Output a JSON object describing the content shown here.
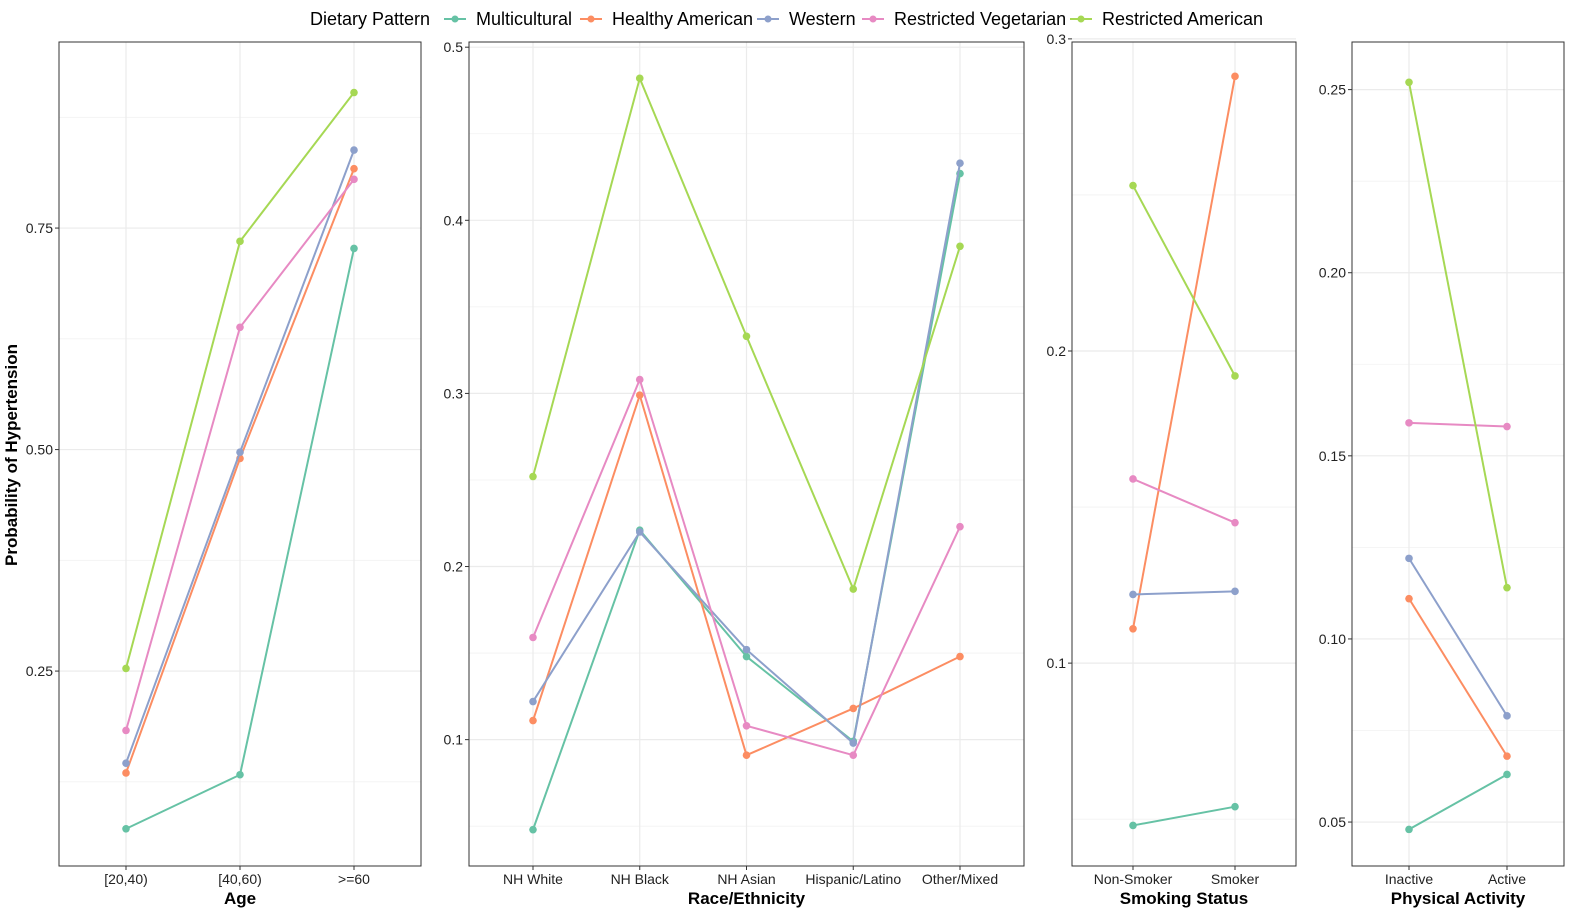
{
  "legend": {
    "title": "Dietary Pattern",
    "entries": [
      {
        "name": "Multicultural",
        "color": "#66C2A5"
      },
      {
        "name": "Healthy American",
        "color": "#FC8D62"
      },
      {
        "name": "Western",
        "color": "#8DA0CB"
      },
      {
        "name": "Restricted Vegetarian",
        "color": "#E78AC3"
      },
      {
        "name": "Restricted American",
        "color": "#A6D854"
      }
    ]
  },
  "ylabel": "Probability of Hypertension",
  "chart_data": [
    {
      "type": "line",
      "xlabel": "Age",
      "categories": [
        "[20,40)",
        "[40,60)",
        ">=60"
      ],
      "yticks": [
        0.25,
        0.5,
        0.75
      ],
      "ytick_labels": [
        "0.25",
        "0.50",
        "0.75"
      ],
      "ylim": [
        0.03,
        0.96
      ],
      "series": [
        {
          "name": "Multicultural",
          "values": [
            0.072,
            0.133,
            0.727
          ]
        },
        {
          "name": "Healthy American",
          "values": [
            0.135,
            0.49,
            0.817
          ]
        },
        {
          "name": "Western",
          "values": [
            0.146,
            0.497,
            0.838
          ]
        },
        {
          "name": "Restricted Vegetarian",
          "values": [
            0.183,
            0.638,
            0.805
          ]
        },
        {
          "name": "Restricted American",
          "values": [
            0.253,
            0.735,
            0.903
          ]
        }
      ]
    },
    {
      "type": "line",
      "xlabel": "Race/Ethnicity",
      "categories": [
        "NH White",
        "NH Black",
        "NH Asian",
        "Hispanic/Latino",
        "Other/Mixed"
      ],
      "yticks": [
        0.1,
        0.2,
        0.3,
        0.4,
        0.5
      ],
      "ytick_labels": [
        "0.1",
        "0.2",
        "0.3",
        "0.4",
        "0.5"
      ],
      "ylim": [
        0.027,
        0.503
      ],
      "series": [
        {
          "name": "Multicultural",
          "values": [
            0.048,
            0.221,
            0.148,
            0.099,
            0.427
          ]
        },
        {
          "name": "Healthy American",
          "values": [
            0.111,
            0.299,
            0.091,
            0.118,
            0.148
          ]
        },
        {
          "name": "Western",
          "values": [
            0.122,
            0.22,
            0.152,
            0.098,
            0.433
          ]
        },
        {
          "name": "Restricted Vegetarian",
          "values": [
            0.159,
            0.308,
            0.108,
            0.091,
            0.223
          ]
        },
        {
          "name": "Restricted American",
          "values": [
            0.252,
            0.482,
            0.333,
            0.187,
            0.385
          ]
        }
      ]
    },
    {
      "type": "line",
      "xlabel": "Smoking Status",
      "categories": [
        "Non-Smoker",
        "Smoker"
      ],
      "yticks": [
        0.1,
        0.2,
        0.3
      ],
      "ytick_labels": [
        "0.1",
        "0.2",
        "0.3"
      ],
      "ylim": [
        0.035,
        0.299
      ],
      "series": [
        {
          "name": "Multicultural",
          "values": [
            0.048,
            0.054
          ]
        },
        {
          "name": "Healthy American",
          "values": [
            0.111,
            0.288
          ]
        },
        {
          "name": "Western",
          "values": [
            0.122,
            0.123
          ]
        },
        {
          "name": "Restricted Vegetarian",
          "values": [
            0.159,
            0.145
          ]
        },
        {
          "name": "Restricted American",
          "values": [
            0.253,
            0.192
          ]
        }
      ]
    },
    {
      "type": "line",
      "xlabel": "Physical Activity",
      "categories": [
        "Inactive",
        "Active"
      ],
      "yticks": [
        0.05,
        0.1,
        0.15,
        0.2,
        0.25
      ],
      "ytick_labels": [
        "0.05",
        "0.10",
        "0.15",
        "0.20",
        "0.25"
      ],
      "ylim": [
        0.038,
        0.263
      ],
      "series": [
        {
          "name": "Multicultural",
          "values": [
            0.048,
            0.063
          ]
        },
        {
          "name": "Healthy American",
          "values": [
            0.111,
            0.068
          ]
        },
        {
          "name": "Western",
          "values": [
            0.122,
            0.079
          ]
        },
        {
          "name": "Restricted Vegetarian",
          "values": [
            0.159,
            0.158
          ]
        },
        {
          "name": "Restricted American",
          "values": [
            0.252,
            0.114
          ]
        }
      ]
    }
  ]
}
